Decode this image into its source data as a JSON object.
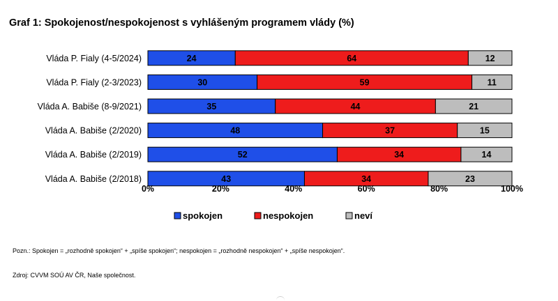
{
  "chart_data": {
    "type": "bar",
    "orientation": "horizontal",
    "stacked": true,
    "percent_stacked": true,
    "title": "Graf 1: Spokojenost/nespokojenost s vyhlášeným programem vlády (%)",
    "categories": [
      "Vláda P. Fialy (4-5/2024)",
      "Vláda P. Fialy (2-3/2023)",
      "Vláda A. Babiše (8-9/2021)",
      "Vláda A. Babiše (2/2020)",
      "Vláda A. Babiše (2/2019)",
      "Vláda A. Babiše (2/2018)"
    ],
    "series": [
      {
        "name": "spokojen",
        "color": "#1f4fe8",
        "values": [
          24,
          30,
          35,
          48,
          52,
          43
        ]
      },
      {
        "name": "nespokojen",
        "color": "#ee1c1c",
        "values": [
          64,
          59,
          44,
          37,
          34,
          34
        ]
      },
      {
        "name": "neví",
        "color": "#bdbdbd",
        "values": [
          12,
          11,
          21,
          15,
          14,
          23
        ]
      }
    ],
    "x_ticks": [
      "0%",
      "20%",
      "40%",
      "60%",
      "80%",
      "100%"
    ],
    "xlim": [
      0,
      100
    ],
    "grid": false,
    "legend_position": "bottom",
    "data_labels": true
  },
  "notes": {
    "definition": "Pozn.: Spokojen = „rozhodně spokojen“ + „spíše spokojen“; nespokojen = „rozhodně nespokojen“ + „spíše nespokojen“.",
    "source": "Zdroj: CVVM SOÚ AV ČR, Naše společnost."
  }
}
